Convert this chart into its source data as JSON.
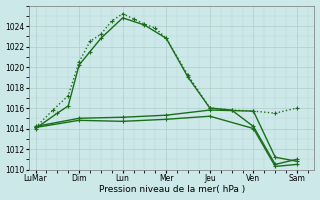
{
  "title": "",
  "xlabel": "Pression niveau de la mer( hPa )",
  "ylabel": "",
  "background_color": "#cce8e8",
  "grid_color": "#b0c8c8",
  "line_color": "#1a6e1a",
  "ylim": [
    1010,
    1026
  ],
  "yticks": [
    1010,
    1012,
    1014,
    1016,
    1018,
    1020,
    1022,
    1024
  ],
  "x_labels": [
    "LuMar",
    "Dim",
    "Lun",
    "Mer",
    "Jeu",
    "Ven",
    "Sam"
  ],
  "x_positions": [
    0,
    2,
    4,
    6,
    8,
    10,
    12
  ],
  "lines": [
    {
      "x": [
        0,
        1,
        1.5,
        2,
        2.5,
        3,
        4,
        5,
        6,
        7,
        8,
        9,
        10,
        11,
        12
      ],
      "y": [
        1014.0,
        1015.5,
        1016.2,
        1020.2,
        1021.5,
        1022.8,
        1024.8,
        1024.1,
        1022.8,
        1019.0,
        1016.0,
        1015.8,
        1014.2,
        1010.5,
        1011.0
      ],
      "style": "-",
      "marker": "+",
      "lw": 1.0,
      "ms": 3.0
    },
    {
      "x": [
        0,
        0.8,
        1.5,
        2,
        2.5,
        3,
        3.5,
        4,
        4.5,
        5,
        5.5,
        6,
        7,
        8,
        9,
        10,
        11,
        12
      ],
      "y": [
        1014.1,
        1015.8,
        1017.2,
        1020.5,
        1022.5,
        1023.2,
        1024.5,
        1025.2,
        1024.7,
        1024.2,
        1023.8,
        1022.8,
        1019.2,
        1016.0,
        1015.8,
        1015.7,
        1015.5,
        1016.0
      ],
      "style": ":",
      "marker": "+",
      "lw": 1.0,
      "ms": 3.0
    },
    {
      "x": [
        0,
        2,
        4,
        6,
        8,
        10,
        11,
        12
      ],
      "y": [
        1014.2,
        1015.0,
        1015.1,
        1015.3,
        1015.8,
        1015.7,
        1011.2,
        1010.8
      ],
      "style": "-",
      "marker": "+",
      "lw": 1.0,
      "ms": 3.0
    },
    {
      "x": [
        0,
        2,
        4,
        6,
        8,
        10,
        11,
        12
      ],
      "y": [
        1014.1,
        1014.8,
        1014.7,
        1014.9,
        1015.2,
        1014.0,
        1010.3,
        1010.5
      ],
      "style": "-",
      "marker": "+",
      "lw": 1.0,
      "ms": 3.0
    }
  ]
}
